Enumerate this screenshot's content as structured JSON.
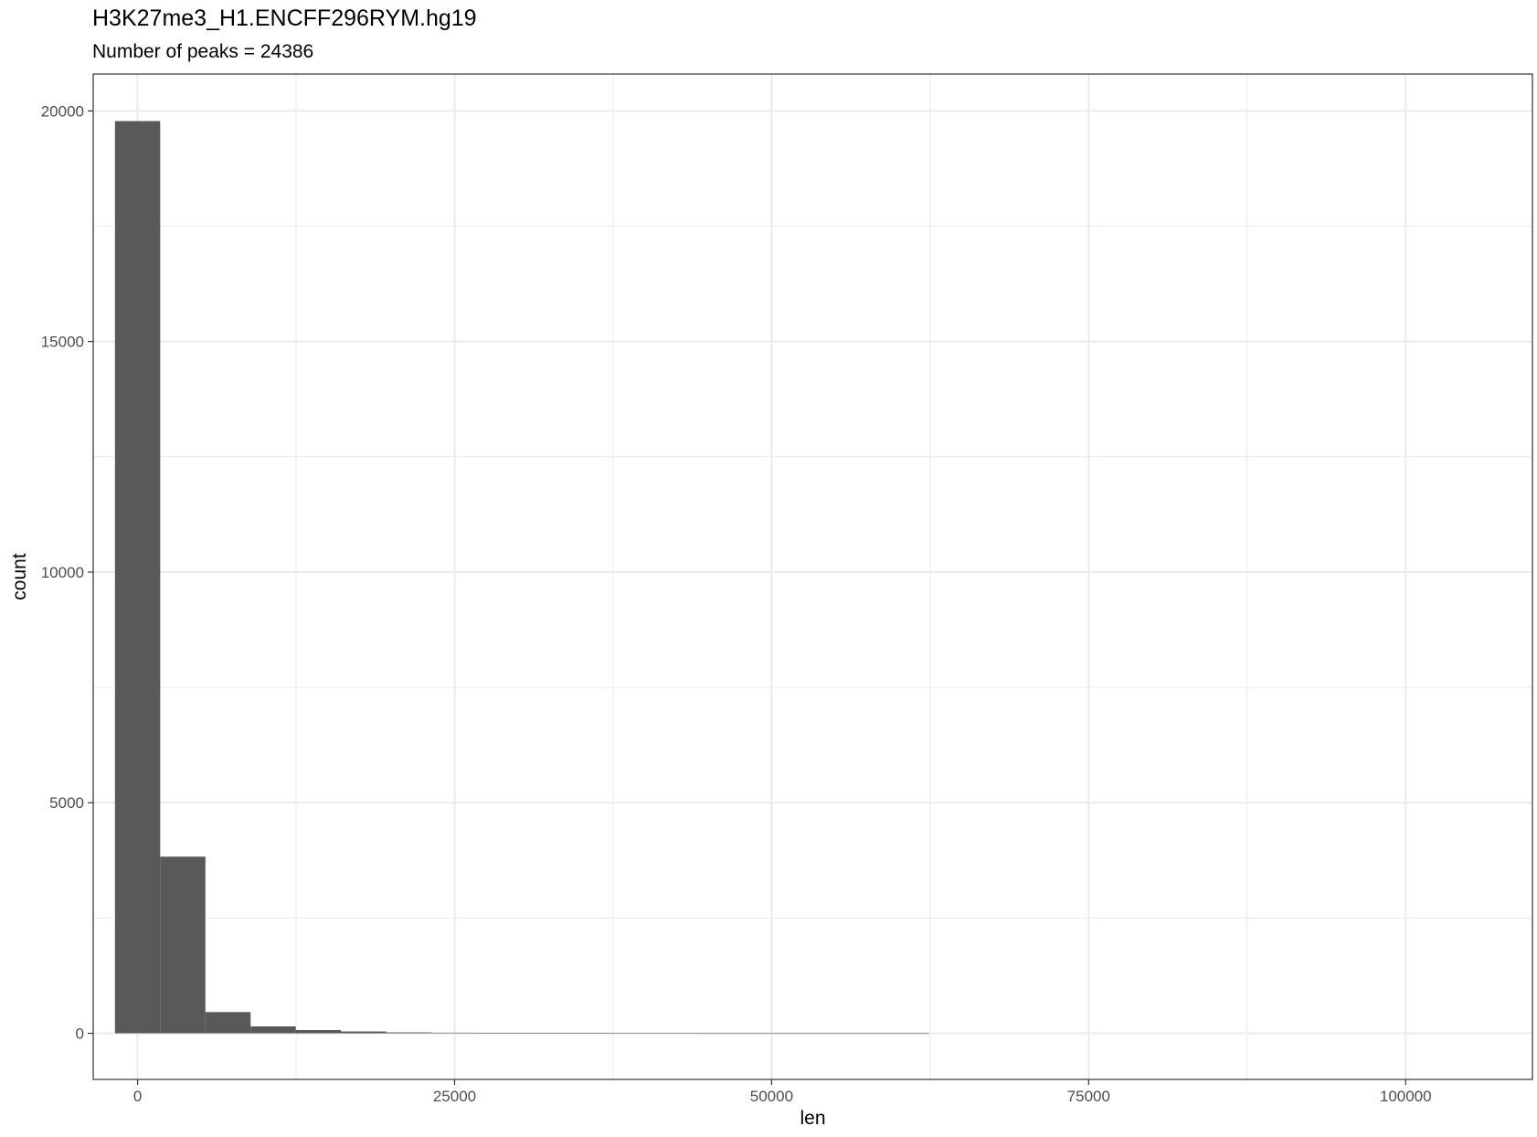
{
  "chart_data": {
    "type": "bar",
    "title": "H3K27me3_H1.ENCFF296RYM.hg19",
    "subtitle": "Number of peaks = 24386",
    "xlabel": "len",
    "ylabel": "count",
    "xlim": [
      -3500,
      110000
    ],
    "ylim": [
      -1000,
      20800
    ],
    "x_ticks": [
      0,
      25000,
      50000,
      75000,
      100000
    ],
    "y_ticks": [
      0,
      5000,
      10000,
      15000,
      20000
    ],
    "grid": true,
    "bin_width": 3565,
    "bars": [
      {
        "x0": -1783,
        "x1": 1783,
        "count": 19780
      },
      {
        "x0": 1783,
        "x1": 5348,
        "count": 3830
      },
      {
        "x0": 5348,
        "x1": 8913,
        "count": 460
      },
      {
        "x0": 8913,
        "x1": 12478,
        "count": 150
      },
      {
        "x0": 12478,
        "x1": 16043,
        "count": 70
      },
      {
        "x0": 16043,
        "x1": 19608,
        "count": 40
      },
      {
        "x0": 19608,
        "x1": 23173,
        "count": 20
      },
      {
        "x0": 23173,
        "x1": 26738,
        "count": 12
      },
      {
        "x0": 26738,
        "x1": 30303,
        "count": 8
      },
      {
        "x0": 30303,
        "x1": 33868,
        "count": 5
      },
      {
        "x0": 33868,
        "x1": 37433,
        "count": 3
      },
      {
        "x0": 37433,
        "x1": 40998,
        "count": 2
      },
      {
        "x0": 40998,
        "x1": 44563,
        "count": 2
      },
      {
        "x0": 44563,
        "x1": 48128,
        "count": 1
      },
      {
        "x0": 48128,
        "x1": 51693,
        "count": 1
      },
      {
        "x0": 51693,
        "x1": 55258,
        "count": 1
      },
      {
        "x0": 55258,
        "x1": 58823,
        "count": 1
      },
      {
        "x0": 58823,
        "x1": 62388,
        "count": 1
      }
    ],
    "bar_color": "#595959",
    "panel_border_color": "#333333",
    "grid_color": "#ebebeb"
  }
}
